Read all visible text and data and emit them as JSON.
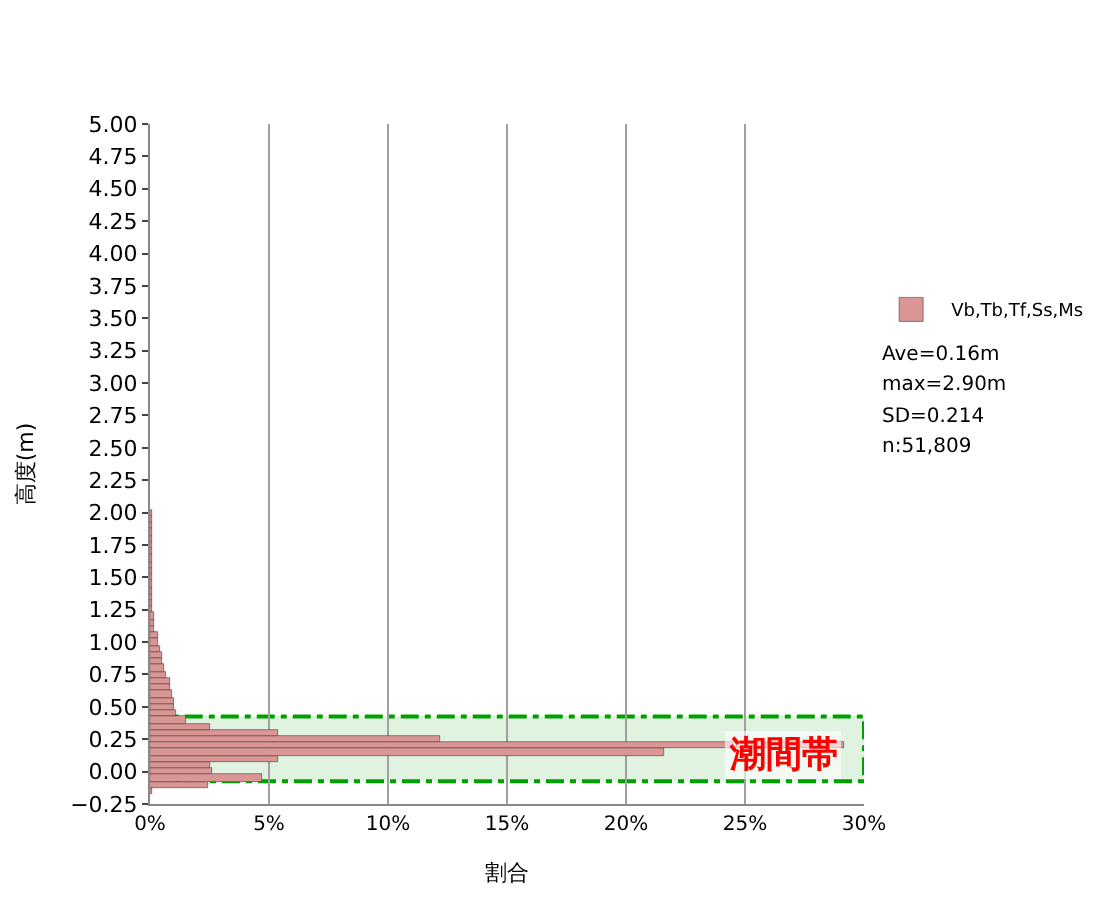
{
  "chart_data": {
    "type": "histogram",
    "orientation": "horizontal",
    "xlabel": "割合",
    "ylabel": "高度(m)",
    "bins": [
      -0.175,
      -0.125,
      -0.075,
      -0.025,
      0.025,
      0.075,
      0.125,
      0.175,
      0.225,
      0.275,
      0.325,
      0.375,
      0.425,
      0.475,
      0.525,
      0.575,
      0.625,
      0.675,
      0.725,
      0.775,
      0.825,
      0.875,
      0.925,
      0.975,
      1.025,
      1.075,
      1.125,
      1.175,
      1.225,
      1.275,
      1.325,
      1.375,
      1.425,
      1.475,
      1.525,
      1.575,
      1.625,
      1.675,
      1.725,
      1.775,
      1.825,
      1.875,
      1.925,
      1.975,
      2.025
    ],
    "series": [
      {
        "name": "Vb,Tb,Tf,Ss,Ms",
        "color": "#d99694",
        "values": [
          0.1,
          2.4,
          4.7,
          2.6,
          2.5,
          5.4,
          21.6,
          29.2,
          12.2,
          5.4,
          2.5,
          1.5,
          1.1,
          1.0,
          1.0,
          0.9,
          0.8,
          0.8,
          0.7,
          0.6,
          0.5,
          0.5,
          0.4,
          0.3,
          0.3,
          0.2,
          0.2,
          0.2,
          0.1,
          0.1,
          0.1,
          0.1,
          0.1,
          0.1,
          0.1,
          0.1,
          0.1,
          0.1,
          0.1,
          0.1,
          0.1,
          0.1,
          0.1,
          0.1
        ]
      }
    ],
    "xlim": [
      0,
      30
    ],
    "xticks": [
      {
        "value": 0,
        "label": "0%"
      },
      {
        "value": 5,
        "label": "5%"
      },
      {
        "value": 10,
        "label": "10%"
      },
      {
        "value": 15,
        "label": "15%"
      },
      {
        "value": 20,
        "label": "20%"
      },
      {
        "value": 25,
        "label": "25%"
      },
      {
        "value": 30,
        "label": "30%"
      }
    ],
    "ylim": [
      -0.25,
      5.0
    ],
    "yticks": [
      {
        "value": -0.25,
        "label": "−0.25"
      },
      {
        "value": 0,
        "label": "0.00"
      },
      {
        "value": 0.25,
        "label": "0.25"
      },
      {
        "value": 0.5,
        "label": "0.50"
      },
      {
        "value": 0.75,
        "label": "0.75"
      },
      {
        "value": 1,
        "label": "1.00"
      },
      {
        "value": 1.25,
        "label": "1.25"
      },
      {
        "value": 1.5,
        "label": "1.50"
      },
      {
        "value": 1.75,
        "label": "1.75"
      },
      {
        "value": 2,
        "label": "2.00"
      },
      {
        "value": 2.25,
        "label": "2.25"
      },
      {
        "value": 2.5,
        "label": "2.50"
      },
      {
        "value": 2.75,
        "label": "2.75"
      },
      {
        "value": 3,
        "label": "3.00"
      },
      {
        "value": 3.25,
        "label": "3.25"
      },
      {
        "value": 3.5,
        "label": "3.50"
      },
      {
        "value": 3.75,
        "label": "3.75"
      },
      {
        "value": 4,
        "label": "4.00"
      },
      {
        "value": 4.25,
        "label": "4.25"
      },
      {
        "value": 4.5,
        "label": "4.50"
      },
      {
        "value": 4.75,
        "label": "4.75"
      },
      {
        "value": 5,
        "label": "5.00"
      }
    ],
    "bands": [
      {
        "axis": "y",
        "from": -0.075,
        "to": 0.425,
        "label": "潮間帯",
        "color": "#00a000"
      }
    ],
    "annotations": [
      "Ave=0.16m",
      "max=2.90m",
      "SD=0.214",
      "n:51,809"
    ],
    "grid": "x",
    "legend": "right"
  }
}
